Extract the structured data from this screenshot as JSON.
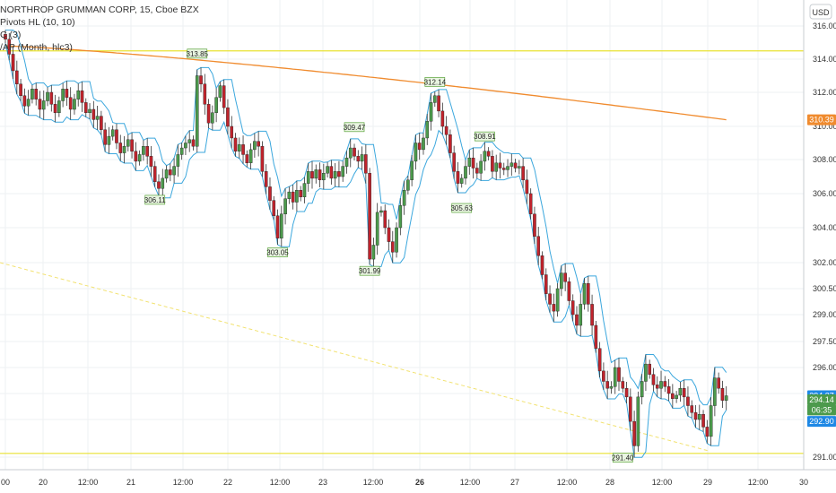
{
  "legend": {
    "symbol_line": "NORTHROP GRUMMAN CORP, 15, Cboe BZX",
    "pivots_line": "Pivots HL (10, 10)",
    "third_line": "C (3)",
    "vwap_line": "/AP (Month, hlc3)"
  },
  "currency": "USD",
  "colors": {
    "up": "#4c9a4c",
    "down": "#c0232c",
    "channel": "#3ba7dd",
    "vwap": "#f08b2e",
    "hline": "#e8e232",
    "trend": "#f2e270",
    "grid": "#eef0f3",
    "pivot_fill": "#e9f5e1",
    "pivot_border": "#5aa33a",
    "badge_vwap": "#f08b2e",
    "badge_blue": "#1e88e5",
    "badge_green": "#4c9a4c"
  },
  "chart_data": {
    "type": "candlestick",
    "title": "NORTHROP GRUMMAN CORP, 15, Cboe BZX",
    "y_ticks": [
      316.0,
      314.0,
      312.0,
      310.0,
      308.0,
      306.0,
      304.0,
      302.0,
      300.5,
      299.0,
      297.5,
      296.0,
      294.5,
      293.0,
      291.0
    ],
    "x_ticks": [
      "00",
      "20",
      "12:00",
      "21",
      "12:00",
      "22",
      "12:00",
      "23",
      "12:00",
      "26",
      "12:00",
      "27",
      "12:00",
      "28",
      "12:00",
      "29",
      "12:00",
      "30"
    ],
    "horizontal_lines": [
      314.5,
      291.2
    ],
    "price_badges": [
      {
        "label": "310.39",
        "value": 310.39,
        "color_key": "badge_vwap"
      },
      {
        "label": "294.37",
        "value": 294.37,
        "color_key": "badge_blue"
      },
      {
        "label": "294.14",
        "value": 294.14,
        "color_key": "badge_green"
      },
      {
        "label": "06:35",
        "value": 293.55,
        "color_key": "badge_green"
      },
      {
        "label": "292.90",
        "value": 292.9,
        "color_key": "badge_blue"
      }
    ],
    "pivot_labels": [
      {
        "label": "313.85",
        "bar": 50,
        "value": 313.85,
        "kind": "high"
      },
      {
        "label": "306.11",
        "bar": 39,
        "value": 306.11,
        "kind": "low"
      },
      {
        "label": "309.47",
        "bar": 91,
        "value": 309.47,
        "kind": "high"
      },
      {
        "label": "303.05",
        "bar": 71,
        "value": 303.05,
        "kind": "low"
      },
      {
        "label": "301.99",
        "bar": 95,
        "value": 301.99,
        "kind": "low"
      },
      {
        "label": "312.14",
        "bar": 112,
        "value": 312.14,
        "kind": "high"
      },
      {
        "label": "305.63",
        "bar": 119,
        "value": 305.63,
        "kind": "low"
      },
      {
        "label": "308.91",
        "bar": 125,
        "value": 308.91,
        "kind": "high"
      },
      {
        "label": "291.40",
        "bar": 161,
        "value": 291.4,
        "kind": "low"
      }
    ],
    "closes": [
      315.2,
      314.3,
      313.3,
      312.5,
      311.8,
      311.2,
      311.6,
      312.2,
      311.6,
      311.0,
      311.5,
      312.0,
      311.3,
      310.8,
      311.5,
      312.2,
      311.7,
      311.0,
      311.6,
      312.1,
      311.4,
      310.8,
      311.0,
      310.4,
      310.6,
      309.8,
      308.9,
      309.4,
      309.8,
      309.0,
      308.4,
      308.8,
      309.2,
      308.5,
      307.9,
      308.3,
      308.8,
      308.2,
      307.6,
      306.7,
      306.3,
      306.9,
      307.4,
      307.1,
      307.6,
      308.3,
      308.7,
      309.0,
      309.2,
      308.8,
      313.0,
      312.5,
      311.3,
      310.2,
      310.8,
      311.7,
      312.4,
      311.1,
      310.0,
      309.3,
      308.5,
      308.9,
      308.3,
      307.8,
      308.6,
      309.1,
      308.8,
      307.3,
      306.4,
      305.6,
      304.7,
      303.4,
      304.8,
      305.7,
      306.1,
      305.5,
      306.2,
      305.8,
      306.6,
      307.3,
      306.9,
      307.4,
      306.8,
      307.2,
      307.6,
      306.9,
      307.3,
      307.0,
      307.6,
      308.1,
      308.7,
      308.2,
      307.9,
      308.3,
      307.2,
      302.2,
      303.0,
      304.9,
      305.0,
      304.0,
      303.2,
      302.6,
      304.0,
      305.3,
      306.2,
      306.8,
      307.9,
      309.0,
      308.6,
      309.3,
      310.3,
      311.4,
      311.8,
      310.9,
      310.0,
      309.5,
      308.4,
      307.3,
      306.6,
      306.9,
      307.6,
      308.1,
      307.5,
      307.2,
      307.9,
      308.5,
      308.2,
      307.3,
      307.8,
      307.5,
      307.4,
      307.6,
      307.8,
      307.5,
      307.6,
      306.8,
      306.0,
      304.8,
      303.5,
      302.4,
      301.3,
      300.2,
      299.6,
      299.2,
      300.5,
      301.4,
      300.9,
      299.8,
      299.0,
      298.4,
      299.6,
      300.8,
      299.6,
      298.4,
      297.1,
      295.8,
      295.2,
      294.8,
      294.9,
      296.0,
      295.2,
      294.8,
      294.3,
      292.9,
      291.6,
      294.3,
      295.2,
      296.2,
      295.6,
      295.0,
      294.8,
      295.2,
      294.9,
      294.5,
      294.2,
      294.4,
      294.8,
      294.3,
      293.8,
      293.4,
      293.0,
      293.3,
      292.6,
      292.1,
      293.8,
      295.4,
      294.8,
      294.1,
      294.37
    ]
  }
}
